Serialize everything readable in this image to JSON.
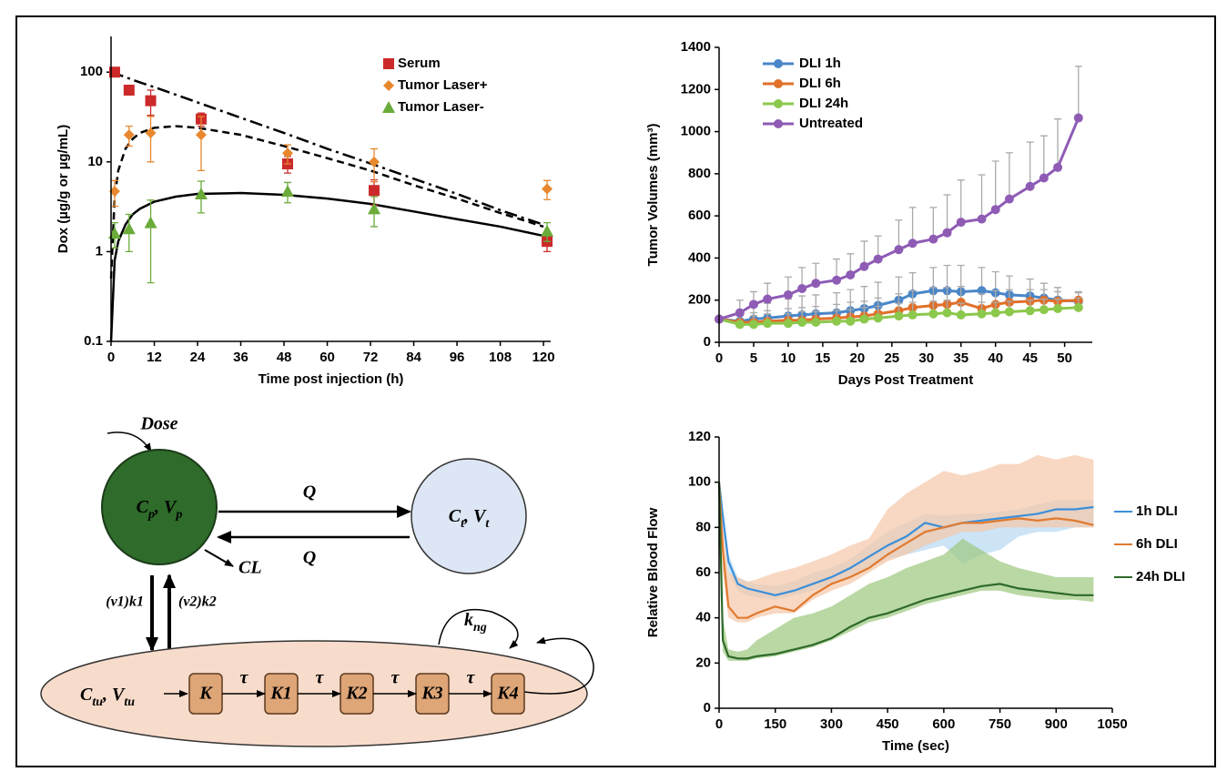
{
  "chart_data": [
    {
      "type": "scatter",
      "x_label": "Time post injection (h)",
      "y_label": "Dox (µg/g or µg/mL)",
      "log_y": true,
      "xlim": [
        0,
        122
      ],
      "ylim": [
        0.1,
        250
      ],
      "xticks": [
        0,
        12,
        24,
        36,
        48,
        60,
        72,
        84,
        96,
        108,
        120
      ],
      "yticks": [
        0.1,
        1,
        10,
        100
      ],
      "legend": "upper right",
      "x": [
        1,
        5,
        11,
        25,
        49,
        73,
        121
      ],
      "series": [
        {
          "name": "Serum",
          "color": "#cc2a2a",
          "marker": "square",
          "values": [
            100,
            63,
            48,
            30,
            9.5,
            4.8,
            1.3
          ],
          "errors": [
            5,
            3,
            15,
            5,
            2,
            1.5,
            0.3
          ]
        },
        {
          "name": "Tumor Laser+",
          "color": "#e8882e",
          "marker": "diamond",
          "values": [
            4.7,
            20,
            21,
            20,
            12.5,
            10,
            5
          ],
          "errors": [
            1.5,
            5,
            11,
            12,
            3,
            4,
            1.2
          ]
        },
        {
          "name": "Tumor Laser-",
          "color": "#6aab3a",
          "marker": "triangle",
          "values": [
            1.6,
            1.8,
            2.1,
            4.4,
            4.7,
            3,
            1.7
          ],
          "errors": [
            0.5,
            0.8,
            1.65,
            1.7,
            1.2,
            1.1,
            0.4
          ]
        }
      ],
      "fits": [
        {
          "style": "dash-dot",
          "x": [
            0,
            1,
            2,
            4,
            6,
            8,
            12,
            18,
            24,
            36,
            48,
            60,
            72,
            84,
            96,
            108,
            120
          ],
          "values": [
            100,
            97,
            94,
            88,
            82,
            77,
            68,
            56,
            46,
            31,
            21,
            14,
            9.6,
            6.5,
            4.4,
            2.9,
            2.0
          ]
        },
        {
          "style": "dashed",
          "x": [
            0,
            1,
            2,
            4,
            6,
            8,
            12,
            18,
            24,
            36,
            48,
            60,
            72,
            84,
            96,
            108,
            120
          ],
          "values": [
            0.5,
            4,
            8,
            14,
            18,
            21,
            24,
            25,
            24,
            20,
            15,
            11,
            8,
            5.5,
            3.9,
            2.7,
            1.9
          ]
        },
        {
          "style": "solid",
          "x": [
            0,
            1,
            2,
            4,
            6,
            8,
            12,
            18,
            24,
            36,
            48,
            60,
            72,
            84,
            96,
            108,
            120
          ],
          "values": [
            0.1,
            0.8,
            1.3,
            2,
            2.6,
            3,
            3.6,
            4.1,
            4.4,
            4.5,
            4.3,
            3.9,
            3.4,
            2.8,
            2.3,
            1.9,
            1.5
          ]
        }
      ]
    },
    {
      "type": "line",
      "x_label": "Days Post Treatment",
      "y_label": "Tumor Volumes (mm³)",
      "xlim": [
        0,
        54
      ],
      "ylim": [
        0,
        1400
      ],
      "xticks": [
        0,
        5,
        10,
        15,
        20,
        25,
        30,
        35,
        40,
        45,
        50
      ],
      "yticks": [
        0,
        200,
        400,
        600,
        800,
        1000,
        1200,
        1400
      ],
      "legend": "upper left",
      "markers": true,
      "error_color": "#aaaaaa",
      "x": [
        0,
        3,
        5,
        7,
        10,
        12,
        14,
        17,
        19,
        21,
        23,
        26,
        28,
        31,
        33,
        35,
        38,
        40,
        42,
        45,
        47,
        49,
        52
      ],
      "series": [
        {
          "name": "DLI 1h",
          "color": "#4a86c8",
          "values": [
            110,
            100,
            110,
            115,
            125,
            130,
            135,
            140,
            150,
            160,
            175,
            200,
            230,
            245,
            245,
            240,
            245,
            235,
            225,
            220,
            210,
            200,
            195
          ],
          "errors": [
            10,
            50,
            60,
            70,
            80,
            90,
            90,
            95,
            100,
            105,
            110,
            110,
            100,
            110,
            120,
            125,
            110,
            100,
            90,
            80,
            70,
            60,
            40
          ]
        },
        {
          "name": "DLI 6h",
          "color": "#e0702a",
          "values": [
            110,
            95,
            95,
            100,
            105,
            105,
            110,
            115,
            120,
            125,
            135,
            150,
            165,
            175,
            180,
            190,
            160,
            180,
            190,
            195,
            200,
            195,
            200
          ],
          "errors": [
            10,
            40,
            45,
            50,
            55,
            60,
            60,
            65,
            70,
            70,
            75,
            80,
            80,
            85,
            80,
            75,
            70,
            65,
            60,
            55,
            50,
            45,
            40
          ]
        },
        {
          "name": "DLI 24h",
          "color": "#8cc84b",
          "values": [
            110,
            85,
            85,
            90,
            90,
            95,
            95,
            100,
            100,
            110,
            115,
            125,
            130,
            135,
            140,
            130,
            135,
            140,
            145,
            150,
            155,
            160,
            165
          ],
          "errors": [
            10,
            40,
            40,
            45,
            45,
            50,
            50,
            50,
            55,
            55,
            55,
            60,
            60,
            60,
            60,
            55,
            55,
            50,
            50,
            50,
            50,
            45,
            45
          ]
        },
        {
          "name": "Untreated",
          "color": "#8e5bb5",
          "values": [
            110,
            140,
            180,
            205,
            225,
            255,
            280,
            295,
            320,
            360,
            395,
            440,
            470,
            490,
            520,
            570,
            585,
            630,
            680,
            740,
            780,
            830,
            1065
          ],
          "errors": [
            10,
            60,
            60,
            75,
            85,
            100,
            95,
            100,
            100,
            120,
            110,
            140,
            170,
            150,
            180,
            200,
            210,
            230,
            220,
            210,
            200,
            230,
            245
          ]
        }
      ]
    },
    {
      "type": "line",
      "x_label": "Time (sec)",
      "y_label": "Relative Blood Flow",
      "xlim": [
        0,
        1050
      ],
      "ylim": [
        0,
        120
      ],
      "xticks": [
        0,
        150,
        300,
        450,
        600,
        750,
        900,
        1050
      ],
      "yticks": [
        0,
        20,
        40,
        60,
        80,
        100,
        120
      ],
      "legend": "right",
      "markers": false,
      "x": [
        0,
        10,
        25,
        50,
        75,
        100,
        150,
        200,
        250,
        300,
        350,
        400,
        450,
        500,
        550,
        600,
        650,
        700,
        750,
        800,
        850,
        900,
        950,
        1000
      ],
      "series": [
        {
          "name": "1h DLI",
          "color": "#3b8fd9",
          "band_color": "#b6d8f2",
          "values": [
            100,
            85,
            65,
            55,
            53,
            52,
            50,
            52,
            55,
            58,
            62,
            67,
            72,
            76,
            82,
            80,
            82,
            83,
            84,
            85,
            86,
            88,
            88,
            89
          ],
          "upper": [
            100,
            88,
            68,
            58,
            56,
            55,
            54,
            56,
            60,
            62,
            66,
            72,
            78,
            82,
            86,
            85,
            86,
            86,
            87,
            88,
            90,
            92,
            92,
            92
          ],
          "lower": [
            100,
            80,
            60,
            52,
            50,
            49,
            48,
            50,
            52,
            55,
            58,
            62,
            66,
            68,
            70,
            72,
            64,
            68,
            70,
            76,
            78,
            78,
            80,
            80
          ]
        },
        {
          "name": "6h DLI",
          "color": "#e07a30",
          "band_color": "#f5c8a8",
          "values": [
            100,
            70,
            45,
            40,
            40,
            42,
            45,
            43,
            50,
            55,
            58,
            62,
            68,
            73,
            78,
            80,
            82,
            82,
            83,
            84,
            83,
            84,
            83,
            81
          ],
          "upper": [
            100,
            80,
            60,
            58,
            56,
            57,
            60,
            62,
            65,
            68,
            72,
            75,
            88,
            95,
            100,
            105,
            103,
            105,
            108,
            108,
            112,
            110,
            112,
            110
          ],
          "lower": [
            100,
            60,
            40,
            38,
            38,
            40,
            42,
            42,
            48,
            52,
            55,
            60,
            65,
            68,
            72,
            75,
            78,
            78,
            80,
            80,
            80,
            80,
            80,
            80
          ]
        },
        {
          "name": "24h DLI",
          "color": "#2e6a2a",
          "band_color": "#9cc87e",
          "values": [
            100,
            30,
            23,
            22,
            22,
            23,
            24,
            26,
            28,
            31,
            36,
            40,
            42,
            45,
            48,
            50,
            52,
            54,
            55,
            53,
            52,
            51,
            50,
            50
          ],
          "upper": [
            100,
            40,
            26,
            25,
            26,
            30,
            35,
            40,
            42,
            45,
            50,
            55,
            58,
            62,
            65,
            68,
            75,
            70,
            65,
            62,
            60,
            58,
            58,
            58
          ],
          "lower": [
            100,
            25,
            21,
            21,
            21,
            22,
            23,
            25,
            27,
            30,
            34,
            38,
            40,
            43,
            46,
            48,
            50,
            52,
            52,
            50,
            49,
            48,
            48,
            47
          ]
        }
      ]
    }
  ],
  "diagram": {
    "dose": "Dose",
    "central": [
      "C",
      {
        "text": "p",
        "sub": true
      },
      ", V",
      {
        "text": "p",
        "sub": true
      }
    ],
    "peripheral": [
      "C",
      {
        "text": "t",
        "sub": true
      },
      ", V",
      {
        "text": "t",
        "sub": true
      }
    ],
    "q_forward": "Q",
    "q_back": "Q",
    "clearance": "CL",
    "k1": "(v1)k1",
    "k2": "(v2)k2",
    "growth": [
      "k",
      {
        "text": "ng",
        "sub": true
      }
    ],
    "tumor": [
      "C",
      {
        "text": "tu",
        "sub": true
      },
      ", V",
      {
        "text": "tu",
        "sub": true
      }
    ],
    "compartments": [
      "K",
      "K1",
      "K2",
      "K3",
      "K4"
    ],
    "delays": [
      "τ",
      "τ",
      "τ",
      "τ"
    ]
  }
}
